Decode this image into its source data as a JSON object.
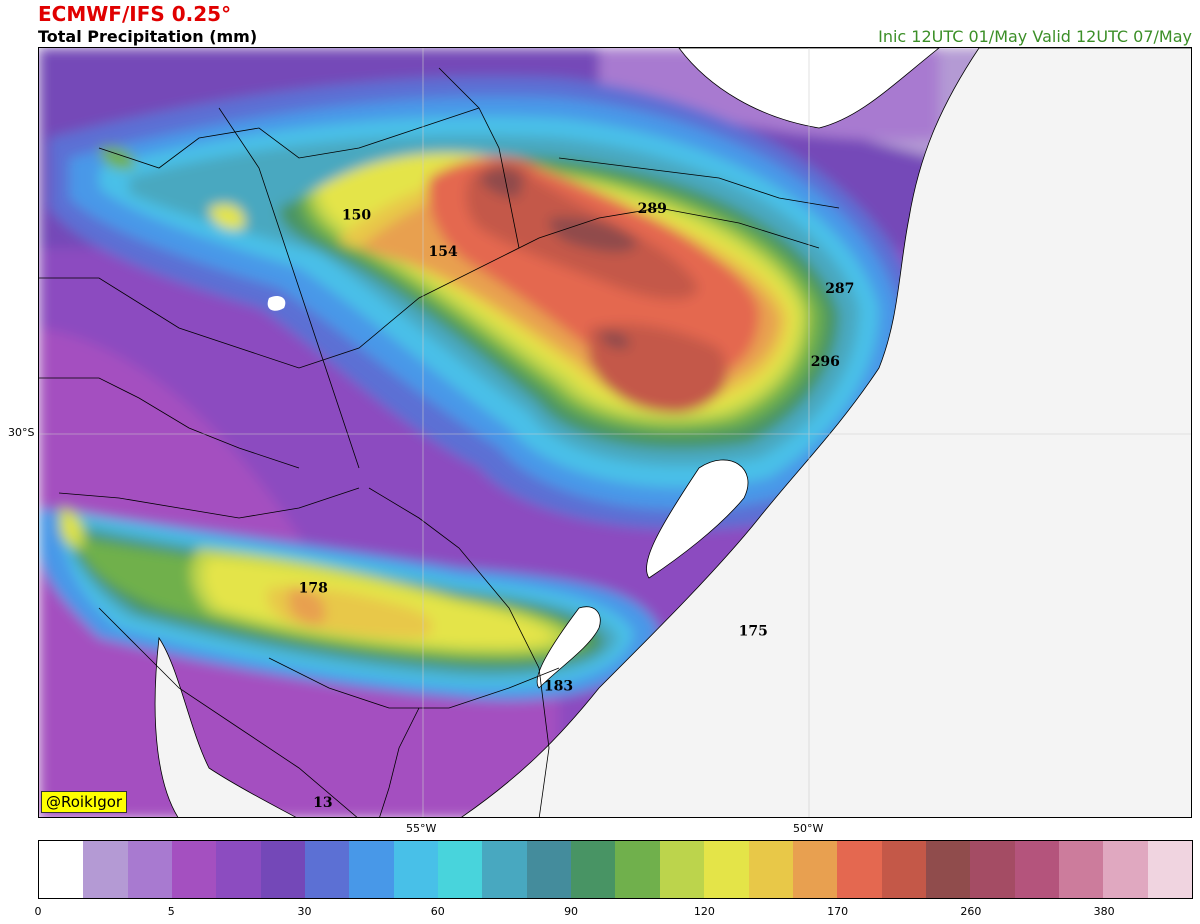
{
  "header": {
    "model": "ECMWF/IFS 0.25°",
    "variable": "Total Precipitation (mm)",
    "validity": "Inic 12UTC 01/May  Valid 12UTC 07/May"
  },
  "map": {
    "lat_labels": [
      "30°S"
    ],
    "lon_labels": [
      "55°W",
      "50°W"
    ],
    "maxima": [
      {
        "value": "150",
        "lon": -59.6,
        "lat": -25.4
      },
      {
        "value": "154",
        "lon": -58.4,
        "lat": -26.0
      },
      {
        "value": "289",
        "lon": -55.5,
        "lat": -25.3
      },
      {
        "value": "287",
        "lon": -52.9,
        "lat": -26.6
      },
      {
        "value": "296",
        "lon": -53.1,
        "lat": -27.8
      },
      {
        "value": "178",
        "lon": -60.2,
        "lat": -31.5
      },
      {
        "value": "183",
        "lon": -56.8,
        "lat": -33.1
      },
      {
        "value": "175",
        "lon": -54.1,
        "lat": -32.2
      },
      {
        "value": "13",
        "lon": -60.0,
        "lat": -35.0
      }
    ],
    "credit": "@RoikIgor"
  },
  "colorbar": {
    "colors": [
      "#ffffff",
      "#b49ad4",
      "#a87ad0",
      "#a450c0",
      "#8c4cc0",
      "#7448b8",
      "#5c70d4",
      "#4898e8",
      "#48c0e8",
      "#48d4dc",
      "#48a8c0",
      "#448c9c",
      "#489464",
      "#70b04c",
      "#bcd44c",
      "#e4e448",
      "#e8c848",
      "#e8a050",
      "#e46850",
      "#c45848",
      "#904c4c",
      "#a44c64",
      "#b4547c",
      "#cc7c9c",
      "#e0a8c0",
      "#f0d4e0"
    ],
    "tick_labels": [
      "0",
      "5",
      "30",
      "60",
      "90",
      "120",
      "170",
      "260",
      "380"
    ],
    "tick_index": [
      0,
      3,
      6,
      9,
      12,
      15,
      18,
      21,
      24
    ]
  }
}
